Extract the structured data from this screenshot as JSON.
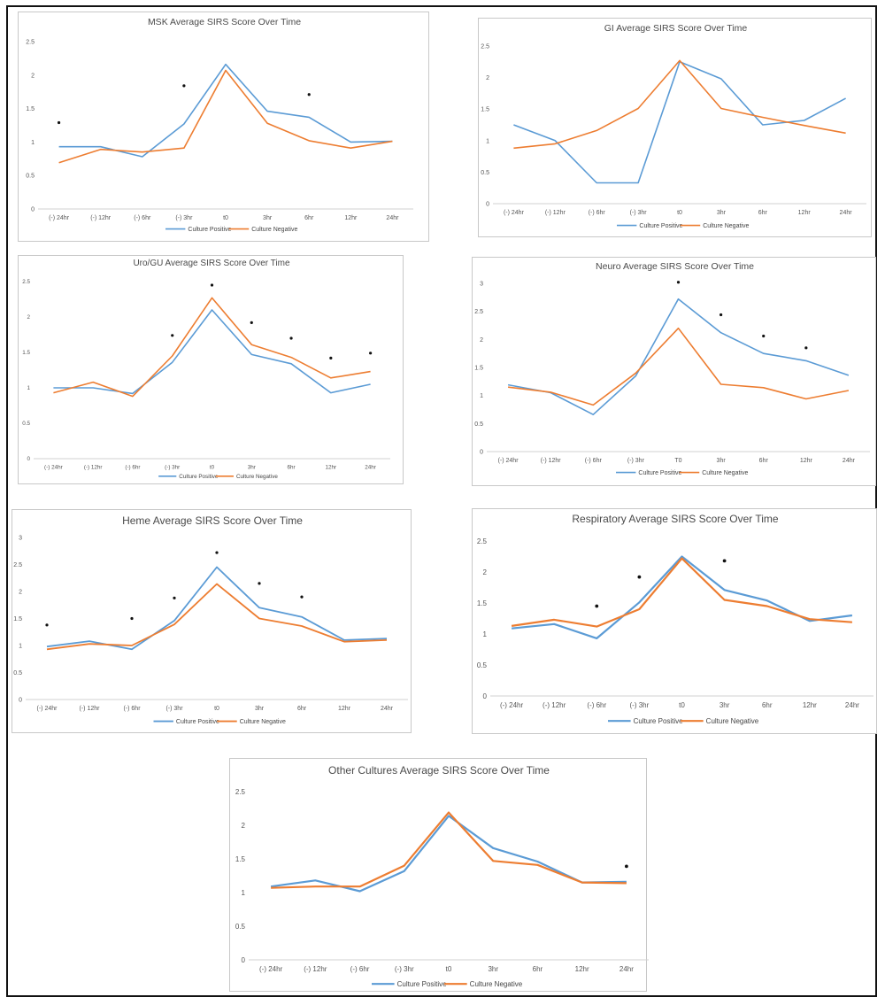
{
  "chart_data": [
    {
      "id": "msk",
      "type": "line",
      "title": "MSK Average SIRS Score Over Time",
      "categories": [
        "(-) 24hr",
        "(-) 12hr",
        "(-) 6hr",
        "(-) 3hr",
        "t0",
        "3hr",
        "6hr",
        "12hr",
        "24hr"
      ],
      "yticks": [
        "0",
        "0.5",
        "1",
        "1.5",
        "2",
        "2.5"
      ],
      "ylim": [
        0,
        2.5
      ],
      "series": [
        {
          "name": "Culture Positive",
          "color": "#5b9bd5",
          "values": [
            0.93,
            0.93,
            0.78,
            1.27,
            2.16,
            1.46,
            1.37,
            1.0,
            1.01
          ]
        },
        {
          "name": "Culture Negative",
          "color": "#ed7d31",
          "values": [
            0.69,
            0.89,
            0.85,
            0.91,
            2.07,
            1.28,
            1.02,
            0.91,
            1.01
          ]
        }
      ],
      "markers": [
        {
          "x": 0,
          "y": 1.29
        },
        {
          "x": 3,
          "y": 1.84
        },
        {
          "x": 6,
          "y": 1.71
        }
      ]
    },
    {
      "id": "gi",
      "type": "line",
      "title": "GI Average SIRS Score Over Time",
      "categories": [
        "(-) 24hr",
        "(-) 12hr",
        "(-) 6hr",
        "(-) 3hr",
        "t0",
        "3hr",
        "6hr",
        "12hr",
        "24hr"
      ],
      "yticks": [
        "0",
        "0.5",
        "1",
        "1.5",
        "2",
        "2.5"
      ],
      "ylim": [
        0,
        2.5
      ],
      "series": [
        {
          "name": "Culture Positive",
          "color": "#5b9bd5",
          "values": [
            1.25,
            1.0,
            0.33,
            0.33,
            2.25,
            1.98,
            1.25,
            1.32,
            1.67
          ]
        },
        {
          "name": "Culture Negative",
          "color": "#ed7d31",
          "values": [
            0.88,
            0.95,
            1.16,
            1.51,
            2.27,
            1.51,
            1.37,
            1.24,
            1.12
          ]
        }
      ],
      "markers": []
    },
    {
      "id": "uro",
      "type": "line",
      "title": "Uro/GU Average SIRS Score Over Time",
      "categories": [
        "(-) 24hr",
        "(-) 12hr",
        "(-) 6hr",
        "(-) 3hr",
        "t0",
        "3hr",
        "6hr",
        "12hr",
        "24hr"
      ],
      "yticks": [
        "0",
        "0.5",
        "1",
        "1.5",
        "2",
        "2.5"
      ],
      "ylim": [
        0,
        2.5
      ],
      "series": [
        {
          "name": "Culture Positive",
          "color": "#5b9bd5",
          "values": [
            1.0,
            1.0,
            0.92,
            1.36,
            2.1,
            1.47,
            1.34,
            0.93,
            1.05
          ]
        },
        {
          "name": "Culture Negative",
          "color": "#ed7d31",
          "values": [
            0.93,
            1.08,
            0.88,
            1.45,
            2.27,
            1.61,
            1.43,
            1.14,
            1.23
          ]
        }
      ],
      "markers": [
        {
          "x": 3,
          "y": 1.74
        },
        {
          "x": 4,
          "y": 2.45
        },
        {
          "x": 5,
          "y": 1.92
        },
        {
          "x": 6,
          "y": 1.7
        },
        {
          "x": 7,
          "y": 1.42
        },
        {
          "x": 8,
          "y": 1.49
        }
      ]
    },
    {
      "id": "neuro",
      "type": "line",
      "title": "Neuro Average SIRS Score Over Time",
      "categories": [
        "(-) 24hr",
        "(-) 12hr",
        "(-) 6hr",
        "(-) 3hr",
        "T0",
        "3hr",
        "6hr",
        "12hr",
        "24hr"
      ],
      "yticks": [
        "0",
        "0.5",
        "1",
        "1.5",
        "2",
        "2.5",
        "3"
      ],
      "ylim": [
        0,
        3
      ],
      "series": [
        {
          "name": "Culture Positive",
          "color": "#5b9bd5",
          "values": [
            1.19,
            1.05,
            0.66,
            1.35,
            2.72,
            2.12,
            1.75,
            1.62,
            1.36
          ]
        },
        {
          "name": "Culture Negative",
          "color": "#ed7d31",
          "values": [
            1.15,
            1.06,
            0.83,
            1.4,
            2.2,
            1.2,
            1.14,
            0.94,
            1.09
          ]
        }
      ],
      "markers": [
        {
          "x": 4,
          "y": 3.02
        },
        {
          "x": 5,
          "y": 2.44
        },
        {
          "x": 6,
          "y": 2.06
        },
        {
          "x": 7,
          "y": 1.85
        }
      ]
    },
    {
      "id": "heme",
      "type": "line",
      "title": "Heme Average SIRS Score Over Time",
      "categories": [
        "(-) 24hr",
        "(-) 12hr",
        "(-) 6hr",
        "(-) 3hr",
        "t0",
        "3hr",
        "6hr",
        "12hr",
        "24hr"
      ],
      "yticks": [
        "0",
        "0.5",
        "1",
        "1.5",
        "2",
        "2.5",
        "3"
      ],
      "ylim": [
        0,
        3
      ],
      "series": [
        {
          "name": "Culture Positive",
          "color": "#5b9bd5",
          "values": [
            0.98,
            1.08,
            0.93,
            1.46,
            2.45,
            1.7,
            1.53,
            1.1,
            1.13
          ]
        },
        {
          "name": "Culture Negative",
          "color": "#ed7d31",
          "values": [
            0.93,
            1.03,
            1.0,
            1.39,
            2.14,
            1.5,
            1.36,
            1.07,
            1.1
          ]
        }
      ],
      "markers": [
        {
          "x": 0,
          "y": 1.38
        },
        {
          "x": 2,
          "y": 1.5
        },
        {
          "x": 3,
          "y": 1.88
        },
        {
          "x": 4,
          "y": 2.72
        },
        {
          "x": 5,
          "y": 2.15
        },
        {
          "x": 6,
          "y": 1.9
        }
      ]
    },
    {
      "id": "resp",
      "type": "line",
      "title": "Respiratory Average SIRS Score Over Time",
      "categories": [
        "(-) 24hr",
        "(-) 12hr",
        "(-) 6hr",
        "(-) 3hr",
        "t0",
        "3hr",
        "6hr",
        "12hr",
        "24hr"
      ],
      "yticks": [
        "0",
        "0.5",
        "1",
        "1.5",
        "2",
        "2.5"
      ],
      "ylim": [
        0,
        2.5
      ],
      "series": [
        {
          "name": "Culture Positive",
          "color": "#5b9bd5",
          "values": [
            1.09,
            1.16,
            0.93,
            1.51,
            2.25,
            1.71,
            1.54,
            1.21,
            1.3
          ]
        },
        {
          "name": "Culture Negative",
          "color": "#ed7d31",
          "values": [
            1.13,
            1.23,
            1.12,
            1.4,
            2.22,
            1.55,
            1.45,
            1.24,
            1.19
          ]
        }
      ],
      "markers": [
        {
          "x": 2,
          "y": 1.45
        },
        {
          "x": 3,
          "y": 1.92
        },
        {
          "x": 5,
          "y": 2.18
        }
      ]
    },
    {
      "id": "other",
      "type": "line",
      "title": "Other Cultures Average SIRS Score Over Time",
      "categories": [
        "(-) 24hr",
        "(-) 12hr",
        "(-) 6hr",
        "(-) 3hr",
        "t0",
        "3hr",
        "6hr",
        "12hr",
        "24hr"
      ],
      "yticks": [
        "0",
        "0.5",
        "1",
        "1.5",
        "2",
        "2.5"
      ],
      "ylim": [
        0,
        2.5
      ],
      "series": [
        {
          "name": "Culture Positive",
          "color": "#5b9bd5",
          "values": [
            1.09,
            1.18,
            1.02,
            1.32,
            2.14,
            1.66,
            1.46,
            1.15,
            1.16
          ]
        },
        {
          "name": "Culture Negative",
          "color": "#ed7d31",
          "values": [
            1.07,
            1.09,
            1.09,
            1.4,
            2.19,
            1.47,
            1.41,
            1.15,
            1.14
          ]
        }
      ],
      "markers": [
        {
          "x": 8,
          "y": 1.39
        }
      ]
    }
  ]
}
